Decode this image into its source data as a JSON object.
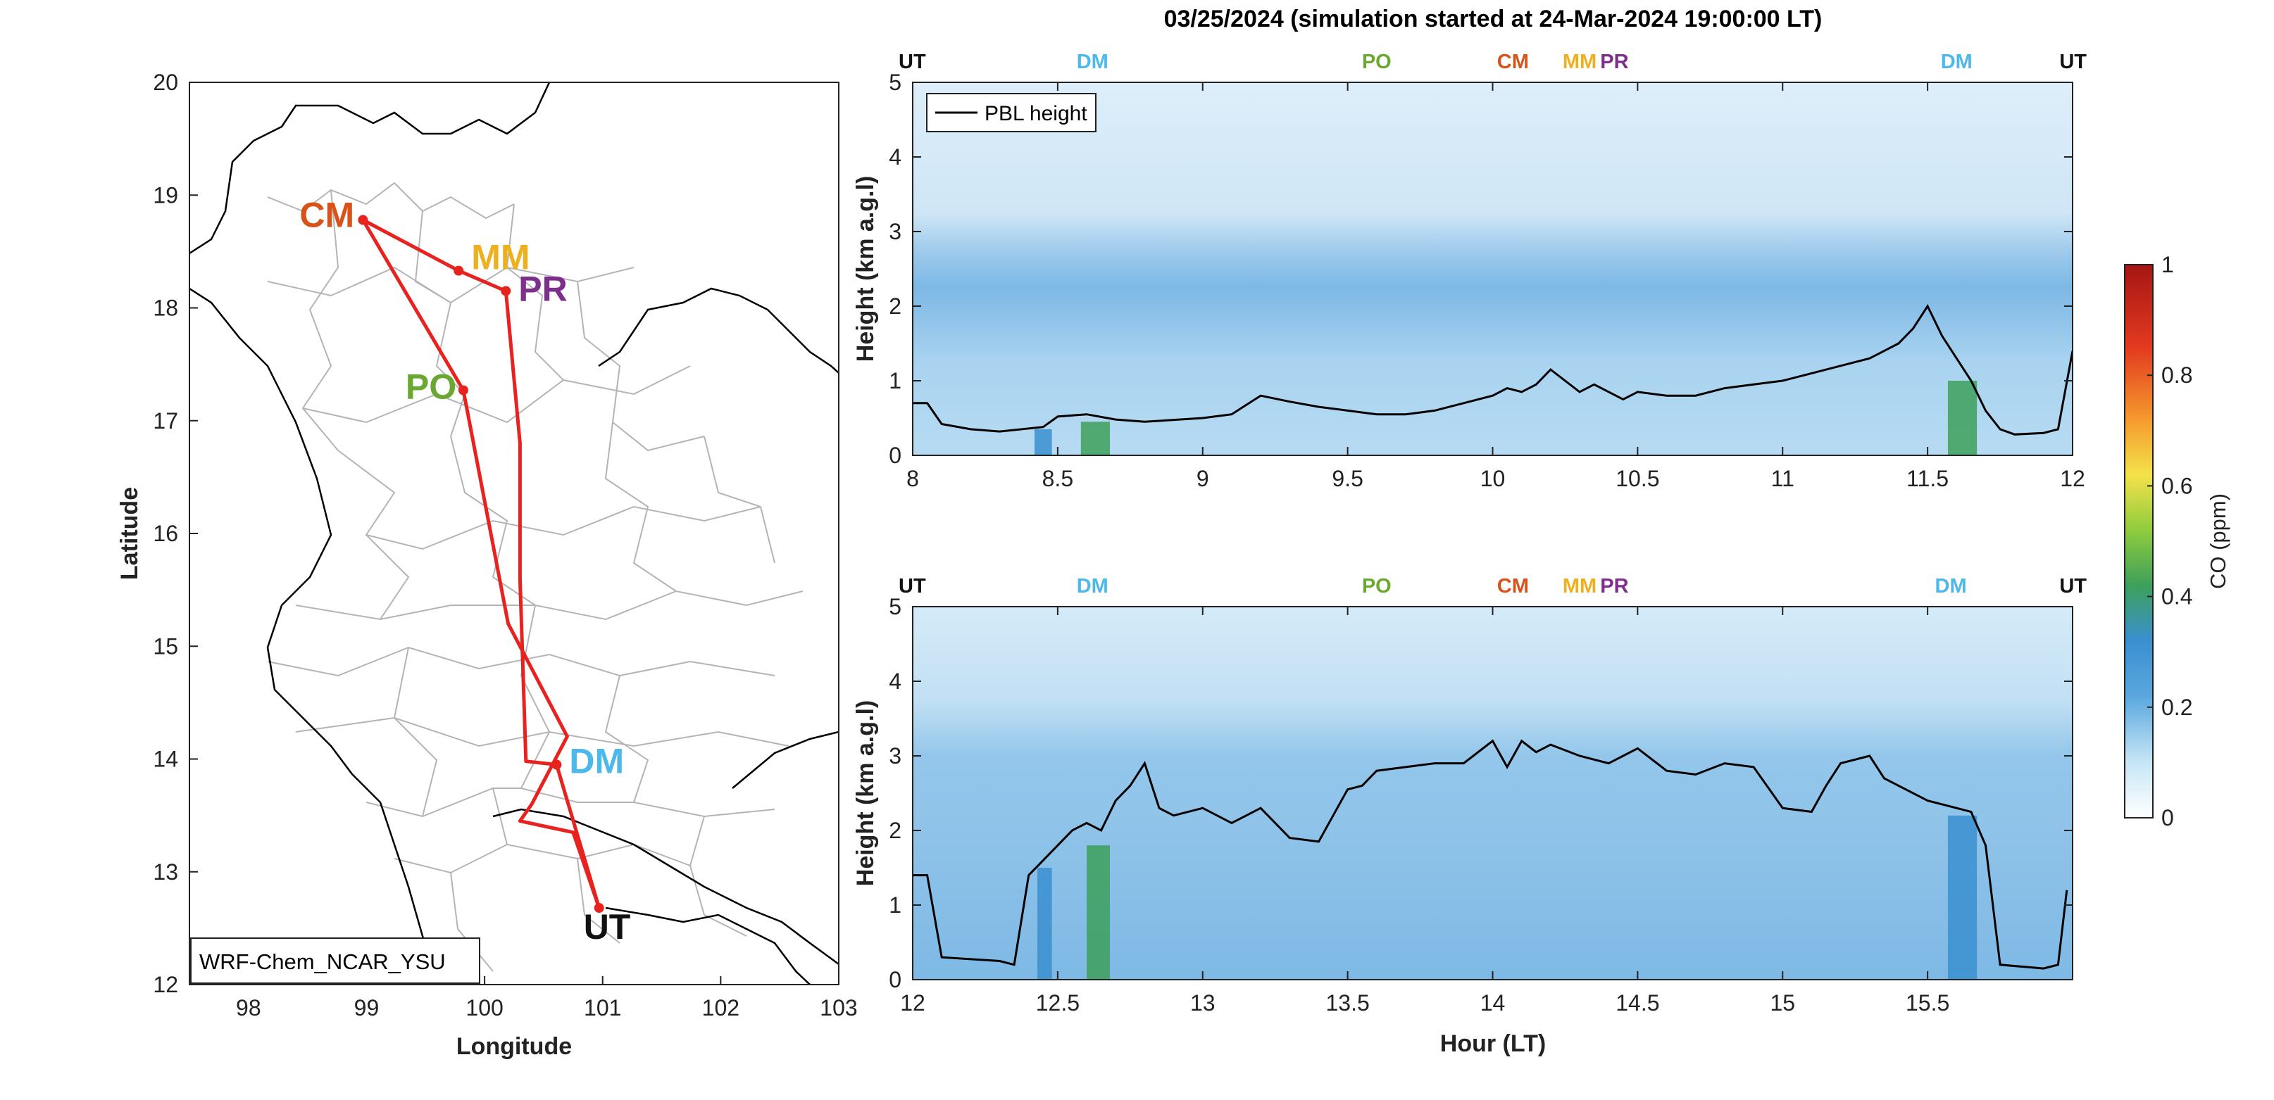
{
  "figure": {
    "title": "03/25/2024 (simulation started at 24-Mar-2024 19:00:00 LT)"
  },
  "colors": {
    "route": "#e8231f",
    "border": "#000000",
    "province": "#b4b4b4",
    "pbl": "#000000",
    "UT": "#111111",
    "DM": "#4db8ea",
    "PO": "#6aa832",
    "CM": "#d95319",
    "MM": "#edb120",
    "PR": "#7e2f8e"
  },
  "map": {
    "xlabel": "Longitude",
    "ylabel": "Latitude",
    "model_label": "WRF-Chem_NCAR_YSU",
    "xlim": [
      97.5,
      103
    ],
    "ylim": [
      12,
      20
    ],
    "xticks": [
      "98",
      "99",
      "100",
      "101",
      "102",
      "103"
    ],
    "yticks": [
      "12",
      "13",
      "14",
      "15",
      "16",
      "17",
      "18",
      "19",
      "20"
    ],
    "sites": [
      {
        "code": "CM",
        "lon": 98.97,
        "lat": 18.78,
        "color": "#d95319"
      },
      {
        "code": "MM",
        "lon": 99.78,
        "lat": 18.33,
        "color": "#edb120"
      },
      {
        "code": "PR",
        "lon": 100.18,
        "lat": 18.15,
        "color": "#7e2f8e"
      },
      {
        "code": "PO",
        "lon": 99.82,
        "lat": 17.27,
        "color": "#6aa832"
      },
      {
        "code": "DM",
        "lon": 100.61,
        "lat": 13.95,
        "color": "#4db8ea"
      },
      {
        "code": "UT",
        "lon": 100.97,
        "lat": 12.68,
        "color": "#111111"
      }
    ],
    "route": [
      [
        100.97,
        12.68
      ],
      [
        100.61,
        13.95
      ],
      [
        100.35,
        13.98
      ],
      [
        100.3,
        15.6
      ],
      [
        100.3,
        16.8
      ],
      [
        100.18,
        18.15
      ],
      [
        99.78,
        18.33
      ],
      [
        98.97,
        18.78
      ],
      [
        99.82,
        17.27
      ],
      [
        100.2,
        15.2
      ],
      [
        100.7,
        14.2
      ],
      [
        100.4,
        13.6
      ],
      [
        100.3,
        13.45
      ],
      [
        100.75,
        13.35
      ],
      [
        100.97,
        12.68
      ]
    ]
  },
  "chart_data": [
    {
      "type": "heatmap",
      "title": "03/25/2024 (simulation started at 24-Mar-2024 19:00:00 LT)",
      "xlabel": "",
      "ylabel": "Height (km a.g.l)",
      "xlim": [
        8,
        12
      ],
      "ylim": [
        0,
        5
      ],
      "xticks": [
        "8",
        "8.5",
        "9",
        "9.5",
        "10",
        "10.5",
        "11",
        "11.5",
        "12"
      ],
      "yticks": [
        "0",
        "1",
        "2",
        "3",
        "4",
        "5"
      ],
      "legend": {
        "placement": "top-left",
        "entries": [
          "PBL height"
        ]
      },
      "site_markers": [
        {
          "code": "UT",
          "x": 8.0
        },
        {
          "code": "DM",
          "x": 8.62
        },
        {
          "code": "PO",
          "x": 9.6
        },
        {
          "code": "CM",
          "x": 10.07
        },
        {
          "code": "MM",
          "x": 10.3
        },
        {
          "code": "PR",
          "x": 10.42
        },
        {
          "code": "DM",
          "x": 11.6
        },
        {
          "code": "UT",
          "x": 12.0
        }
      ],
      "series": [
        {
          "name": "PBL height",
          "x": [
            8.0,
            8.05,
            8.1,
            8.2,
            8.3,
            8.45,
            8.5,
            8.6,
            8.7,
            8.8,
            9.0,
            9.1,
            9.2,
            9.3,
            9.4,
            9.5,
            9.6,
            9.7,
            9.8,
            9.9,
            10.0,
            10.05,
            10.1,
            10.15,
            10.2,
            10.3,
            10.35,
            10.45,
            10.5,
            10.6,
            10.7,
            10.8,
            10.9,
            11.0,
            11.1,
            11.2,
            11.3,
            11.4,
            11.45,
            11.5,
            11.55,
            11.6,
            11.65,
            11.7,
            11.75,
            11.8,
            11.9,
            11.95,
            12.0
          ],
          "y": [
            0.7,
            0.7,
            0.42,
            0.35,
            0.32,
            0.38,
            0.52,
            0.55,
            0.48,
            0.45,
            0.5,
            0.55,
            0.8,
            0.72,
            0.65,
            0.6,
            0.55,
            0.55,
            0.6,
            0.7,
            0.8,
            0.9,
            0.85,
            0.95,
            1.15,
            0.85,
            0.95,
            0.75,
            0.85,
            0.8,
            0.8,
            0.9,
            0.95,
            1.0,
            1.1,
            1.2,
            1.3,
            1.5,
            1.7,
            2.0,
            1.6,
            1.3,
            1.0,
            0.6,
            0.35,
            0.28,
            0.3,
            0.35,
            1.4
          ]
        }
      ],
      "enhancements": [
        {
          "x": [
            8.42,
            8.48
          ],
          "y": [
            0,
            0.35
          ],
          "value": 0.38
        },
        {
          "x": [
            8.58,
            8.68
          ],
          "y": [
            0,
            0.45
          ],
          "value": 0.42
        },
        {
          "x": [
            11.57,
            11.67
          ],
          "y": [
            0,
            1.0
          ],
          "value": 0.42
        }
      ]
    },
    {
      "type": "heatmap",
      "xlabel": "Hour (LT)",
      "ylabel": "Height (km a.g.l)",
      "xlim": [
        12,
        16
      ],
      "ylim": [
        0,
        5
      ],
      "xticks": [
        "12",
        "12.5",
        "13",
        "13.5",
        "14",
        "14.5",
        "15",
        "15.5"
      ],
      "yticks": [
        "0",
        "1",
        "2",
        "3",
        "4",
        "5"
      ],
      "site_markers": [
        {
          "code": "UT",
          "x": 12.0
        },
        {
          "code": "DM",
          "x": 12.62
        },
        {
          "code": "PO",
          "x": 13.6
        },
        {
          "code": "CM",
          "x": 14.07
        },
        {
          "code": "MM",
          "x": 14.3
        },
        {
          "code": "PR",
          "x": 14.42
        },
        {
          "code": "DM",
          "x": 15.58
        },
        {
          "code": "UT",
          "x": 15.98
        }
      ],
      "series": [
        {
          "name": "PBL height",
          "x": [
            12.0,
            12.05,
            12.1,
            12.3,
            12.35,
            12.4,
            12.45,
            12.5,
            12.55,
            12.6,
            12.65,
            12.7,
            12.75,
            12.8,
            12.85,
            12.9,
            13.0,
            13.1,
            13.2,
            13.3,
            13.4,
            13.45,
            13.5,
            13.55,
            13.6,
            13.7,
            13.8,
            13.9,
            14.0,
            14.05,
            14.1,
            14.15,
            14.2,
            14.3,
            14.4,
            14.5,
            14.6,
            14.7,
            14.8,
            14.9,
            15.0,
            15.1,
            15.15,
            15.2,
            15.3,
            15.35,
            15.4,
            15.5,
            15.6,
            15.65,
            15.7,
            15.75,
            15.9,
            15.95,
            15.98
          ],
          "y": [
            1.4,
            1.4,
            0.3,
            0.25,
            0.2,
            1.4,
            1.6,
            1.8,
            2.0,
            2.1,
            2.0,
            2.4,
            2.6,
            2.9,
            2.3,
            2.2,
            2.3,
            2.1,
            2.3,
            1.9,
            1.85,
            2.2,
            2.55,
            2.6,
            2.8,
            2.85,
            2.9,
            2.9,
            3.2,
            2.85,
            3.2,
            3.05,
            3.15,
            3.0,
            2.9,
            3.1,
            2.8,
            2.75,
            2.9,
            2.85,
            2.3,
            2.25,
            2.6,
            2.9,
            3.0,
            2.7,
            2.6,
            2.4,
            2.3,
            2.25,
            1.8,
            0.2,
            0.15,
            0.2,
            1.2
          ]
        }
      ],
      "enhancements": [
        {
          "x": [
            12.43,
            12.48
          ],
          "y": [
            0,
            1.5
          ],
          "value": 0.32
        },
        {
          "x": [
            12.6,
            12.68
          ],
          "y": [
            0,
            1.8
          ],
          "value": 0.4
        },
        {
          "x": [
            15.57,
            15.67
          ],
          "y": [
            0,
            2.2
          ],
          "value": 0.38
        }
      ]
    }
  ],
  "colorbar": {
    "label": "CO (ppm)",
    "range": [
      0,
      1
    ],
    "ticks": [
      "0",
      "0.2",
      "0.4",
      "0.6",
      "0.8",
      "1"
    ],
    "colormap": [
      "#ffffff",
      "#c7e6f6",
      "#5aa7de",
      "#3a8fcf",
      "#3da05a",
      "#8fcc3e",
      "#f4e24a",
      "#f59a2e",
      "#e33a20",
      "#a51613"
    ]
  }
}
